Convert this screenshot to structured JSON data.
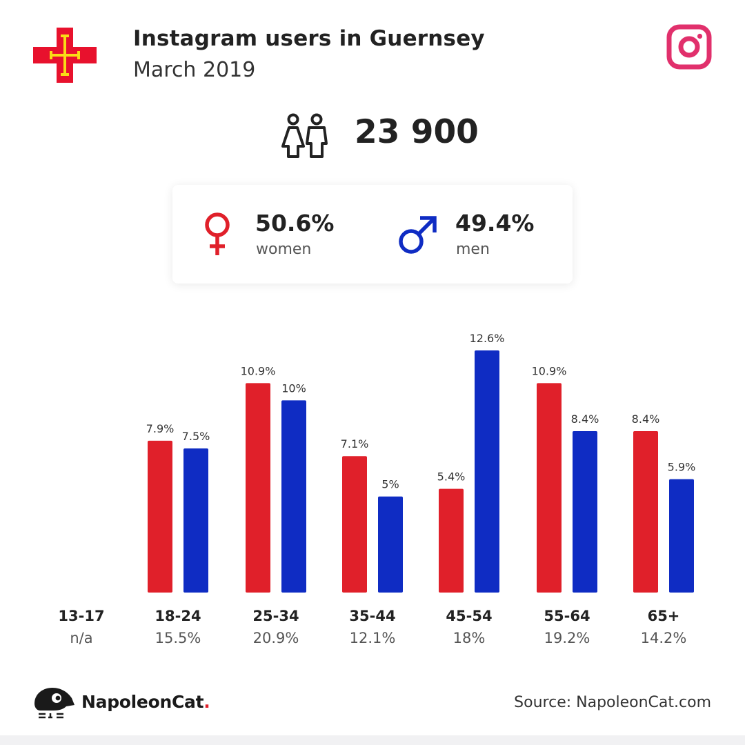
{
  "header": {
    "title": "Instagram users in Guernsey",
    "subtitle": "March 2019"
  },
  "icons": {
    "flag": "guernsey-flag-icon",
    "brand": "instagram-icon",
    "users": "users-icon",
    "female": "female-symbol-icon",
    "male": "male-symbol-icon",
    "logo": "napoleoncat-logo-icon"
  },
  "total_users": "23 900",
  "gender": {
    "women_pct": "50.6%",
    "women_label": "women",
    "men_pct": "49.4%",
    "men_label": "men"
  },
  "colors": {
    "women": "#e0202a",
    "men": "#0f2cc3",
    "instagram": "#e1306c",
    "flag_red": "#e8112d",
    "flag_yellow": "#f9dd16"
  },
  "chart_data": {
    "type": "bar",
    "categories": [
      "13-17",
      "18-24",
      "25-34",
      "35-44",
      "45-54",
      "55-64",
      "65+"
    ],
    "category_totals": [
      "n/a",
      "15.5%",
      "20.9%",
      "12.1%",
      "18%",
      "19.2%",
      "14.2%"
    ],
    "series": [
      {
        "name": "women",
        "values": [
          null,
          7.9,
          10.9,
          7.1,
          5.4,
          10.9,
          8.4
        ],
        "labels": [
          null,
          "7.9%",
          "10.9%",
          "7.1%",
          "5.4%",
          "10.9%",
          "8.4%"
        ]
      },
      {
        "name": "men",
        "values": [
          null,
          7.5,
          10,
          5,
          12.6,
          8.4,
          5.9
        ],
        "labels": [
          null,
          "7.5%",
          "10%",
          "5%",
          "12.6%",
          "8.4%",
          "5.9%"
        ]
      }
    ],
    "ylim": [
      0,
      12.6
    ],
    "grid": false
  },
  "footer": {
    "brand_name": "NapoleonCat",
    "brand_dot": ".",
    "source": "Source: NapoleonCat.com"
  }
}
